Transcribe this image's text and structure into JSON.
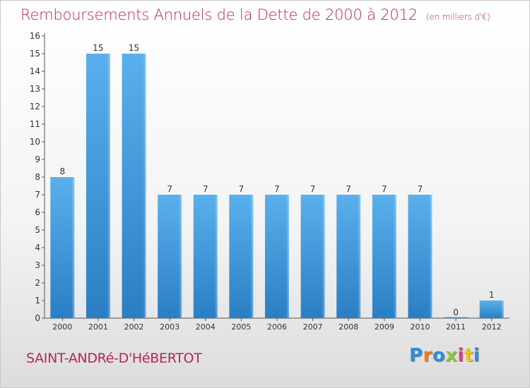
{
  "title": "Remboursements Annuels de la Dette de 2000 à 2012",
  "unit_note": "(en milliers d'€)",
  "commune": "SAINT-ANDRé-D'HéBERTOT",
  "logo": {
    "letters": [
      "P",
      "r",
      "o",
      "x",
      "i",
      "t",
      "i"
    ],
    "colors": [
      "#2e8fd6",
      "#f07a1a",
      "#2e8fd6",
      "#8cc63e",
      "#e23a8a",
      "#f4c21a",
      "#2e8fd6"
    ]
  },
  "colors": {
    "bar_light": "#5ab0ec",
    "bar_dark": "#2a7fc4",
    "title": "#b5255f"
  },
  "chart_data": {
    "type": "bar",
    "title": "Remboursements Annuels de la Dette de 2000 à 2012",
    "categories": [
      "2000",
      "2001",
      "2002",
      "2003",
      "2004",
      "2005",
      "2006",
      "2007",
      "2008",
      "2009",
      "2010",
      "2011",
      "2012"
    ],
    "values": [
      8,
      15,
      15,
      7,
      7,
      7,
      7,
      7,
      7,
      7,
      7,
      0,
      1
    ],
    "data_labels": [
      "8",
      "15",
      "15",
      "7",
      "7",
      "7",
      "7",
      "7",
      "7",
      "7",
      "7",
      "0",
      "1"
    ],
    "yticks": [
      "0",
      "1",
      "2",
      "3",
      "4",
      "5",
      "6",
      "7",
      "8",
      "9",
      "10",
      "11",
      "12",
      "13",
      "14",
      "15",
      "16"
    ],
    "ylim": [
      0,
      16
    ],
    "grid": false
  }
}
